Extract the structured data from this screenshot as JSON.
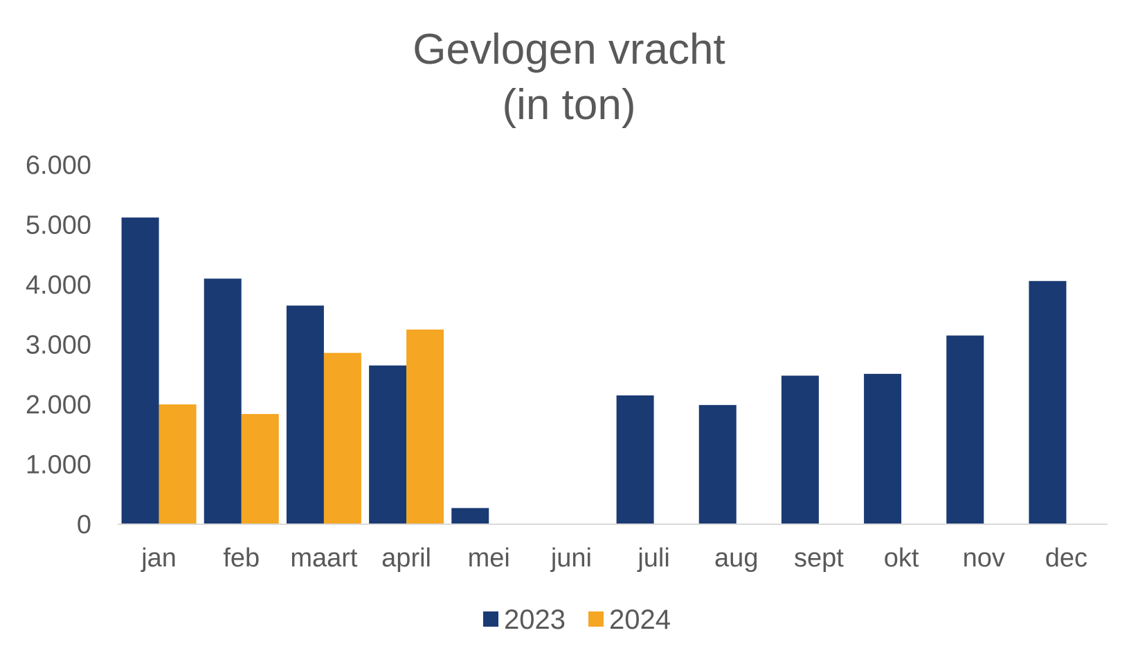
{
  "chart_data": {
    "type": "bar",
    "title": [
      "Gevlogen vracht",
      "(in ton)"
    ],
    "categories": [
      "jan",
      "feb",
      "maart",
      "april",
      "mei",
      "juni",
      "juli",
      "aug",
      "sept",
      "okt",
      "nov",
      "dec"
    ],
    "series": [
      {
        "name": "2023",
        "color": "#1a3a73",
        "values": [
          5120,
          4100,
          3650,
          2650,
          270,
          0,
          2150,
          1990,
          2480,
          2510,
          3150,
          4060
        ]
      },
      {
        "name": "2024",
        "color": "#f5a623",
        "values": [
          2000,
          1840,
          2860,
          3250,
          null,
          null,
          null,
          null,
          null,
          null,
          null,
          null
        ]
      }
    ],
    "ylim": [
      0,
      6000
    ],
    "yticks": [
      "0",
      "1.000",
      "2.000",
      "3.000",
      "4.000",
      "5.000",
      "6.000"
    ],
    "xlabel": "",
    "ylabel": "",
    "grid": false,
    "legend": "bottom"
  }
}
